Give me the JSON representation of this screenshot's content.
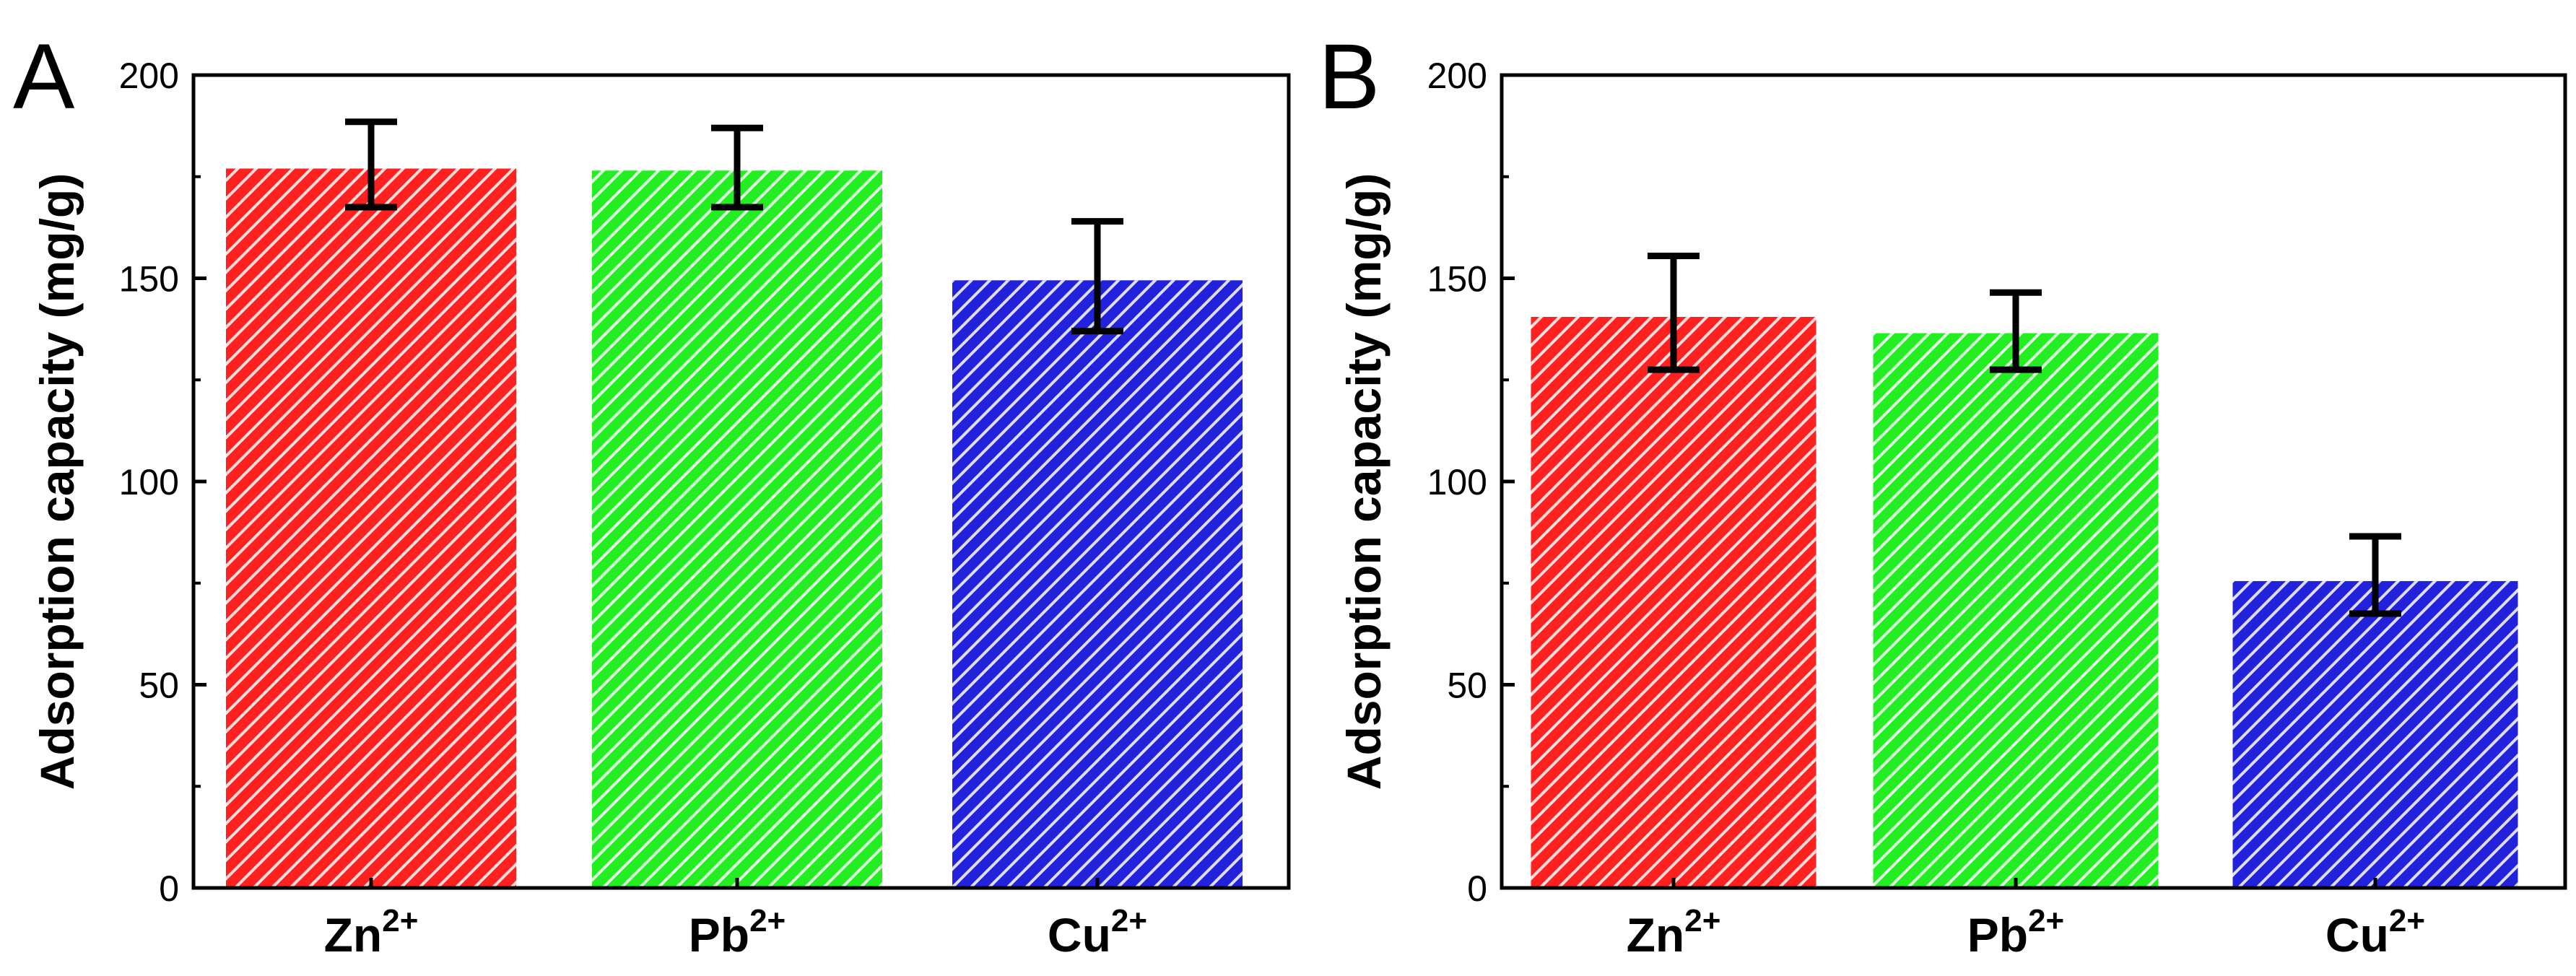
{
  "chart_data": [
    {
      "type": "bar",
      "panel_label": "A",
      "categories": [
        {
          "base": "Zn",
          "sup": "2+"
        },
        {
          "base": "Pb",
          "sup": "2+"
        },
        {
          "base": "Cu",
          "sup": "2+"
        }
      ],
      "values": [
        177,
        176.5,
        149.5
      ],
      "error_low": [
        167.5,
        167.5,
        137
      ],
      "error_high": [
        188.5,
        187,
        164
      ],
      "colors": [
        "#ff2020",
        "#22ee22",
        "#2222dd"
      ],
      "pattern": "diagonal-white-hatch",
      "xlabel": "",
      "ylabel": "Adsorption capacity (mg/g)",
      "ylim": [
        0,
        200
      ],
      "yticks": [
        "0",
        "50",
        "100",
        "150",
        "200"
      ],
      "grid": false,
      "legend": "none"
    },
    {
      "type": "bar",
      "panel_label": "B",
      "categories": [
        {
          "base": "Zn",
          "sup": "2+"
        },
        {
          "base": "Pb",
          "sup": "2+"
        },
        {
          "base": "Cu",
          "sup": "2+"
        }
      ],
      "values": [
        140.5,
        136.5,
        75.5
      ],
      "error_low": [
        127.5,
        127.5,
        67.5
      ],
      "error_high": [
        155.5,
        146.5,
        86.5
      ],
      "colors": [
        "#ff2020",
        "#22ee22",
        "#2222dd"
      ],
      "pattern": "diagonal-white-hatch",
      "xlabel": "",
      "ylabel": "Adsorption capacity (mg/g)",
      "ylim": [
        0,
        200
      ],
      "yticks": [
        "0",
        "50",
        "100",
        "150",
        "200"
      ],
      "grid": false,
      "legend": "none"
    }
  ]
}
